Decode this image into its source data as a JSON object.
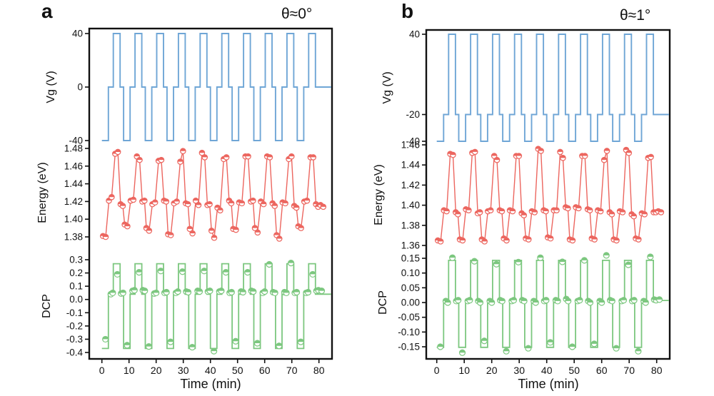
{
  "figure": {
    "x_axis": {
      "label": "Time (min)",
      "ticks": [
        "0",
        "10",
        "20",
        "30",
        "40",
        "50",
        "60",
        "70",
        "80"
      ],
      "range": [
        -4.5,
        85
      ]
    },
    "colors": {
      "vg": "#6fa6d6",
      "energy": "#ec665f",
      "dcp": "#7cc77f",
      "axis": "#111111"
    }
  },
  "chart_data": [
    {
      "panel": "a",
      "theta": "θ≈0°",
      "type": "line",
      "x_unit": "min",
      "period_min": 8,
      "cycles": 10,
      "vg": {
        "label": "Vg (V)",
        "ticks": [
          "40",
          "0",
          "-40"
        ],
        "levels": {
          "low": -40,
          "mid": 0,
          "high": 40
        },
        "step_pattern": [
          [
            0,
            "low"
          ],
          [
            2.4,
            "low"
          ],
          [
            2.4,
            "mid"
          ],
          [
            4.2,
            "mid"
          ],
          [
            4.2,
            "high"
          ],
          [
            6.7,
            "high"
          ],
          [
            6.7,
            "mid"
          ],
          [
            8,
            "mid"
          ]
        ],
        "tail_t": 84.5
      },
      "energy": {
        "label": "Energy (eV)",
        "ticks": [
          "1.48",
          "1.46",
          "1.44",
          "1.42",
          "1.40",
          "1.38"
        ],
        "sample_offsets": [
          0.4,
          1.4,
          2.6,
          3.6,
          4.9,
          5.9,
          6.9,
          7.7
        ],
        "cycle_values": [
          [
            1.381,
            1.38,
            1.421,
            1.425,
            1.474,
            1.476,
            1.417,
            1.415
          ],
          [
            1.394,
            1.392,
            1.421,
            1.422,
            1.471,
            1.467,
            1.42,
            1.421
          ],
          [
            1.39,
            1.387,
            1.417,
            1.419,
            1.466,
            1.467,
            1.421,
            1.42
          ],
          [
            1.383,
            1.382,
            1.418,
            1.42,
            1.465,
            1.477,
            1.418,
            1.417
          ],
          [
            1.389,
            1.384,
            1.421,
            1.416,
            1.475,
            1.47,
            1.416,
            1.417
          ],
          [
            1.387,
            1.379,
            1.413,
            1.41,
            1.468,
            1.47,
            1.421,
            1.418
          ],
          [
            1.389,
            1.388,
            1.419,
            1.418,
            1.471,
            1.471,
            1.42,
            1.421
          ],
          [
            1.39,
            1.385,
            1.42,
            1.417,
            1.471,
            1.47,
            1.418,
            1.415
          ],
          [
            1.382,
            1.378,
            1.419,
            1.418,
            1.468,
            1.471,
            1.415,
            1.413
          ],
          [
            1.392,
            1.39,
            1.42,
            1.421,
            1.47,
            1.47,
            1.417,
            1.414
          ]
        ],
        "tail_points": [
          [
            80.6,
            1.416
          ],
          [
            81.6,
            1.414
          ]
        ]
      },
      "dcp": {
        "label": "DCP",
        "ticks": [
          "0.3",
          "0.2",
          "0.1",
          "0.0",
          "-0.1",
          "-0.2",
          "-0.3",
          "-0.4"
        ],
        "levels": {
          "low": -0.37,
          "mid": 0.04,
          "high": 0.27
        },
        "step_pattern": [
          [
            0,
            "low"
          ],
          [
            2.4,
            "low"
          ],
          [
            2.4,
            "mid"
          ],
          [
            4.2,
            "mid"
          ],
          [
            4.2,
            "high"
          ],
          [
            6.7,
            "high"
          ],
          [
            6.7,
            "mid"
          ],
          [
            8,
            "mid"
          ]
        ],
        "tail_t": 84.5,
        "marker_offsets": [
          1.3,
          3.3,
          4.0,
          5.7,
          7.1,
          7.8
        ],
        "cycle_markers": [
          [
            -0.3,
            0.04,
            0.05,
            0.19,
            0.045,
            0.05
          ],
          [
            -0.345,
            0.065,
            0.07,
            0.205,
            0.07,
            0.065
          ],
          [
            -0.355,
            0.045,
            0.05,
            0.215,
            0.05,
            0.055
          ],
          [
            -0.32,
            0.05,
            0.06,
            0.21,
            0.06,
            0.055
          ],
          [
            -0.36,
            0.065,
            0.06,
            0.215,
            0.06,
            0.065
          ],
          [
            -0.39,
            0.06,
            0.065,
            0.205,
            0.05,
            0.055
          ],
          [
            -0.315,
            0.06,
            0.055,
            0.205,
            0.065,
            0.06
          ],
          [
            -0.33,
            0.05,
            0.06,
            0.265,
            0.055,
            0.05
          ],
          [
            -0.35,
            0.055,
            0.05,
            0.275,
            0.05,
            0.055
          ],
          [
            -0.32,
            0.05,
            0.055,
            0.19,
            0.065,
            0.07
          ]
        ],
        "tail_markers": [
          [
            81,
            0.065
          ]
        ]
      }
    },
    {
      "panel": "b",
      "theta": "θ≈1°",
      "type": "line",
      "x_unit": "min",
      "period_min": 8,
      "cycles": 10,
      "vg": {
        "label": "Vg (V)",
        "ticks": [
          "40",
          "-20",
          "-40"
        ],
        "levels": {
          "low": -40,
          "mid": -20,
          "high": 40
        },
        "step_pattern": [
          [
            0,
            "low"
          ],
          [
            2.5,
            "low"
          ],
          [
            2.5,
            "mid"
          ],
          [
            4.3,
            "mid"
          ],
          [
            4.3,
            "high"
          ],
          [
            6.8,
            "high"
          ],
          [
            6.8,
            "mid"
          ],
          [
            8,
            "mid"
          ]
        ],
        "tail_t": 84.5
      },
      "energy": {
        "label": "Energy (eV)",
        "ticks": [
          "1.46",
          "1.44",
          "1.42",
          "1.40",
          "1.38",
          "1.36"
        ],
        "sample_offsets": [
          0.4,
          1.4,
          2.6,
          3.6,
          4.9,
          5.9,
          6.9,
          7.7
        ],
        "cycle_values": [
          [
            1.365,
            1.364,
            1.395,
            1.394,
            1.451,
            1.45,
            1.393,
            1.391
          ],
          [
            1.366,
            1.365,
            1.396,
            1.395,
            1.452,
            1.453,
            1.392,
            1.393
          ],
          [
            1.366,
            1.364,
            1.394,
            1.395,
            1.449,
            1.445,
            1.395,
            1.394
          ],
          [
            1.367,
            1.365,
            1.395,
            1.394,
            1.449,
            1.449,
            1.392,
            1.39
          ],
          [
            1.367,
            1.366,
            1.394,
            1.393,
            1.456,
            1.454,
            1.395,
            1.394
          ],
          [
            1.368,
            1.367,
            1.395,
            1.395,
            1.453,
            1.447,
            1.398,
            1.397
          ],
          [
            1.366,
            1.365,
            1.398,
            1.397,
            1.449,
            1.449,
            1.396,
            1.395
          ],
          [
            1.367,
            1.366,
            1.395,
            1.394,
            1.445,
            1.454,
            1.393,
            1.391
          ],
          [
            1.366,
            1.365,
            1.394,
            1.393,
            1.455,
            1.452,
            1.391,
            1.389
          ],
          [
            1.367,
            1.366,
            1.392,
            1.391,
            1.447,
            1.448,
            1.393,
            1.393
          ]
        ],
        "tail_points": [
          [
            80.6,
            1.394
          ],
          [
            81.6,
            1.393
          ]
        ]
      },
      "dcp": {
        "label": "DCP",
        "ticks": [
          "0.15",
          "0.10",
          "0.05",
          "0.00",
          "-0.05",
          "-0.10",
          "-0.15"
        ],
        "levels": {
          "low": -0.152,
          "mid": 0.007,
          "high": 0.143
        },
        "step_pattern": [
          [
            0,
            "low"
          ],
          [
            2.5,
            "low"
          ],
          [
            2.5,
            "mid"
          ],
          [
            4.3,
            "mid"
          ],
          [
            4.3,
            "high"
          ],
          [
            6.8,
            "high"
          ],
          [
            6.8,
            "mid"
          ],
          [
            8,
            "mid"
          ]
        ],
        "tail_t": 84.5,
        "marker_offsets": [
          1.3,
          3.3,
          4.0,
          5.7,
          7.1,
          7.8
        ],
        "cycle_markers": [
          [
            -0.15,
            0.005,
            0.0,
            0.152,
            0.005,
            0.008
          ],
          [
            -0.17,
            0.005,
            0.008,
            0.14,
            0.005,
            0.0
          ],
          [
            -0.13,
            0.005,
            0.0,
            0.13,
            0.008,
            0.005
          ],
          [
            -0.165,
            0.005,
            0.008,
            0.137,
            0.008,
            0.005
          ],
          [
            -0.155,
            0.005,
            0.0,
            0.152,
            0.005,
            0.008
          ],
          [
            -0.135,
            0.008,
            0.005,
            0.138,
            0.012,
            0.005
          ],
          [
            -0.15,
            0.005,
            0.008,
            0.143,
            0.005,
            0.0
          ],
          [
            -0.14,
            0.005,
            0.0,
            0.16,
            0.008,
            0.005
          ],
          [
            -0.155,
            0.005,
            0.008,
            0.128,
            0.005,
            0.008
          ],
          [
            -0.165,
            0.005,
            0.0,
            0.155,
            0.01,
            0.008
          ]
        ],
        "tail_markers": [
          [
            81,
            0.01
          ]
        ]
      }
    }
  ]
}
